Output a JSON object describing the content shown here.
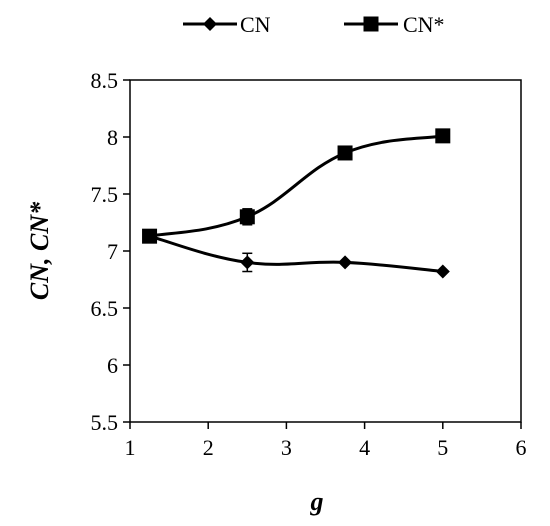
{
  "chart_data": {
    "type": "line",
    "title": "",
    "xlabel": "g",
    "ylabel": "CN, CN*",
    "xlim": [
      1,
      6
    ],
    "ylim": [
      5.5,
      8.5
    ],
    "x_ticks": [
      1,
      2,
      3,
      4,
      5,
      6
    ],
    "x_tick_labels": [
      "1",
      "2",
      "3",
      "4",
      "5",
      "6"
    ],
    "y_ticks": [
      5.5,
      6,
      6.5,
      7,
      7.5,
      8,
      8.5
    ],
    "y_tick_labels": [
      "5.5",
      "6",
      "6.5",
      "7",
      "7.5",
      "8",
      "8.5"
    ],
    "grid": false,
    "legend_position": "top",
    "series": [
      {
        "name": "CN",
        "marker": "diamond",
        "color": "#000000",
        "x": [
          1.25,
          2.5,
          3.75,
          5
        ],
        "y": [
          7.13,
          6.9,
          6.9,
          6.82
        ],
        "error": [
          0,
          0.08,
          0,
          0
        ]
      },
      {
        "name": "CN*",
        "marker": "square",
        "color": "#000000",
        "x": [
          1.25,
          2.5,
          3.75,
          5
        ],
        "y": [
          7.13,
          7.3,
          7.86,
          8.01
        ],
        "error": [
          0,
          0.07,
          0,
          0
        ]
      }
    ]
  }
}
